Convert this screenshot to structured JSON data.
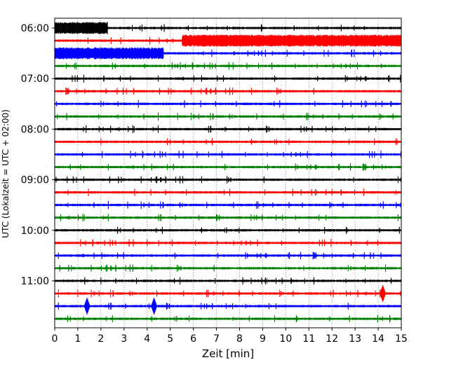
{
  "chart_data": {
    "type": "line",
    "title": "",
    "xlabel": "Zeit  [min]",
    "ylabel": "UTC (Lokalzeit = UTC + 02:00)",
    "xlim": [
      0,
      15
    ],
    "x_ticks": [
      "0",
      "1",
      "2",
      "3",
      "4",
      "5",
      "6",
      "7",
      "8",
      "9",
      "10",
      "11",
      "12",
      "13",
      "14",
      "15"
    ],
    "y_ticks": [
      "06:00",
      "07:00",
      "08:00",
      "09:00",
      "10:00",
      "11:00"
    ],
    "grid": "vertical-dotted",
    "traces_per_hour": 4,
    "minutes_per_trace": 15,
    "color_cycle": [
      "#000000",
      "#ff0000",
      "#0000ff",
      "#008000"
    ],
    "series": [
      {
        "start": "06:00",
        "color": "#000000"
      },
      {
        "start": "06:15",
        "color": "#ff0000"
      },
      {
        "start": "06:30",
        "color": "#0000ff"
      },
      {
        "start": "06:45",
        "color": "#008000"
      },
      {
        "start": "07:00",
        "color": "#000000"
      },
      {
        "start": "07:15",
        "color": "#ff0000"
      },
      {
        "start": "07:30",
        "color": "#0000ff"
      },
      {
        "start": "07:45",
        "color": "#008000"
      },
      {
        "start": "08:00",
        "color": "#000000"
      },
      {
        "start": "08:15",
        "color": "#ff0000"
      },
      {
        "start": "08:30",
        "color": "#0000ff"
      },
      {
        "start": "08:45",
        "color": "#008000"
      },
      {
        "start": "09:00",
        "color": "#000000"
      },
      {
        "start": "09:15",
        "color": "#ff0000"
      },
      {
        "start": "09:30",
        "color": "#0000ff"
      },
      {
        "start": "09:45",
        "color": "#008000"
      },
      {
        "start": "10:00",
        "color": "#000000"
      },
      {
        "start": "10:15",
        "color": "#ff0000"
      },
      {
        "start": "10:30",
        "color": "#0000ff"
      },
      {
        "start": "10:45",
        "color": "#008000"
      },
      {
        "start": "11:00",
        "color": "#000000"
      },
      {
        "start": "11:15",
        "color": "#ff0000"
      },
      {
        "start": "11:30",
        "color": "#0000ff"
      },
      {
        "start": "11:45",
        "color": "#008000"
      }
    ],
    "high_amplitude_segments": [
      {
        "trace": 0,
        "x": [
          0.0,
          2.3
        ]
      },
      {
        "trace": 1,
        "x": [
          5.5,
          15.0
        ]
      },
      {
        "trace": 2,
        "x": [
          0.0,
          4.7
        ]
      }
    ],
    "spikes": [
      {
        "trace": 21,
        "x": 14.2
      },
      {
        "trace": 22,
        "x": 1.4
      },
      {
        "trace": 22,
        "x": 4.3
      }
    ]
  }
}
